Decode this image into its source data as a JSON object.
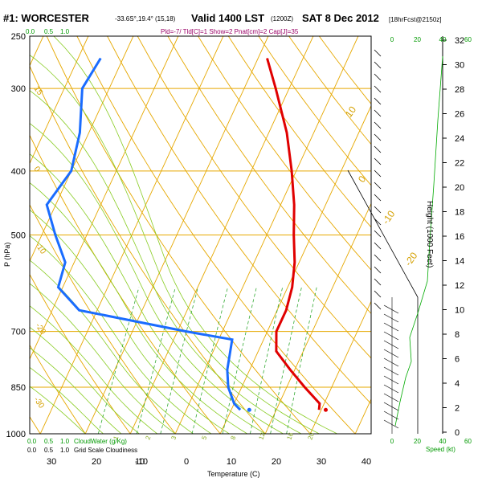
{
  "header": {
    "station": "#1: WORCESTER",
    "coords": "-33.6S°,19.4°  (15,18)",
    "valid": "Valid 1400 LST",
    "utc": "(1200Z)",
    "date": "SAT 8 Dec 2012",
    "fcst": "[18hrFcst@2150z]",
    "indices": "Pld=-7/ Tld[C]=1 Show=2 Pnat[cm]=2 Cap[J]=35"
  },
  "chart_data": {
    "type": "skew-t",
    "xlabel": "Temperature (C)",
    "ylabel": "P (hPa)",
    "right_ylabel": "Height (1000 Feet)",
    "p_ticks": [
      250,
      300,
      400,
      500,
      700,
      850,
      1000
    ],
    "t_ticks": [
      -10,
      0,
      10,
      20,
      30,
      40
    ],
    "mixing_top_labels": [
      "0.0",
      "0.5",
      "1.0"
    ],
    "mixing_bottom_labels": [
      "0.0",
      "0.5",
      "1.0"
    ],
    "cloud_water_label": "CloudWater (g/Kg)",
    "grid_cloud_label": "Grid Scale Cloudiness",
    "left_x_ticks": [
      "30",
      "20",
      "10"
    ],
    "height_ticks": [
      "0",
      "2",
      "4",
      "6",
      "8",
      "10",
      "12",
      "14",
      "16",
      "18",
      "20",
      "22",
      "24",
      "26",
      "28",
      "30",
      "32"
    ],
    "speed_label": "Speed (kt)",
    "speed_ticks": [
      "0",
      "20",
      "40",
      "60"
    ],
    "isotherm_labels": [
      "10",
      "0",
      "-10",
      "-20",
      "-30"
    ],
    "theta_labels": [
      "15",
      "0",
      "-10",
      "-20",
      "-30"
    ],
    "mixing_ratio_labels": [
      "1",
      "2",
      "3",
      "5",
      "8",
      "12",
      "16",
      "20"
    ],
    "temperature": [
      {
        "p": 270,
        "t": -18
      },
      {
        "p": 300,
        "t": -13
      },
      {
        "p": 350,
        "t": -6
      },
      {
        "p": 400,
        "t": -1
      },
      {
        "p": 450,
        "t": 3
      },
      {
        "p": 500,
        "t": 6
      },
      {
        "p": 550,
        "t": 9
      },
      {
        "p": 600,
        "t": 11
      },
      {
        "p": 650,
        "t": 12
      },
      {
        "p": 700,
        "t": 12
      },
      {
        "p": 750,
        "t": 14
      },
      {
        "p": 800,
        "t": 19
      },
      {
        "p": 850,
        "t": 24
      },
      {
        "p": 900,
        "t": 29
      },
      {
        "p": 920,
        "t": 29.5
      }
    ],
    "dewpoint": [
      {
        "p": 270,
        "t": -55
      },
      {
        "p": 300,
        "t": -56
      },
      {
        "p": 350,
        "t": -52
      },
      {
        "p": 400,
        "t": -50
      },
      {
        "p": 450,
        "t": -52
      },
      {
        "p": 500,
        "t": -47
      },
      {
        "p": 550,
        "t": -42
      },
      {
        "p": 600,
        "t": -41
      },
      {
        "p": 650,
        "t": -34
      },
      {
        "p": 700,
        "t": -8
      },
      {
        "p": 720,
        "t": 3
      },
      {
        "p": 800,
        "t": 5
      },
      {
        "p": 850,
        "t": 7
      },
      {
        "p": 900,
        "t": 10
      },
      {
        "p": 920,
        "t": 12
      }
    ],
    "surface_temp": {
      "p": 920,
      "t": 31
    },
    "surface_dew": {
      "p": 920,
      "t": 14
    }
  }
}
